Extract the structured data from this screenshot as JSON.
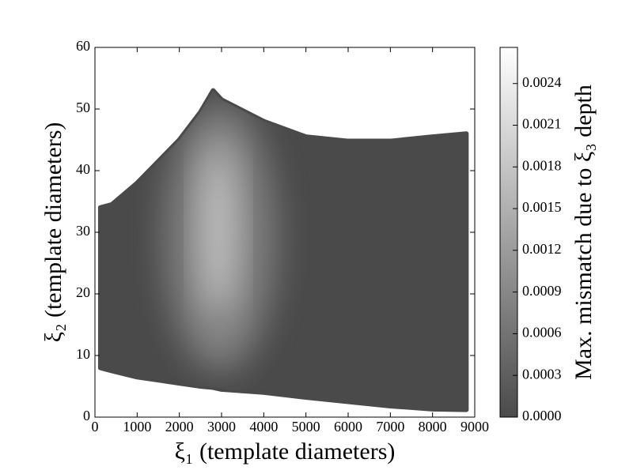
{
  "chart_data": {
    "type": "area",
    "xlabel": "ξ₁ (template diameters)",
    "ylabel": "ξ₂ (template diameters)",
    "colorbar_label": "Max. mismatch due to ξ₃ depth",
    "x": [
      130,
      400,
      1000,
      1500,
      2000,
      2500,
      2800,
      3000,
      4000,
      5000,
      6000,
      7000,
      8000,
      8800
    ],
    "upper": [
      34,
      34.5,
      38,
      41.5,
      45,
      49.5,
      53,
      51.5,
      48,
      45.5,
      44.8,
      44.8,
      45.5,
      46
    ],
    "lower": [
      8,
      7.5,
      6.5,
      6,
      5.5,
      5,
      4.8,
      4.5,
      4,
      3.2,
      2.5,
      1.8,
      1.3,
      1.2
    ],
    "color": "#4a4a4a",
    "cmap": [
      "#4a4a4a",
      "#ffffff"
    ],
    "xlim": [
      0,
      9000
    ],
    "xticks": [
      0,
      1000,
      2000,
      3000,
      4000,
      5000,
      6000,
      7000,
      8000,
      9000
    ],
    "ylim": [
      0,
      60
    ],
    "yticks": [
      0,
      10,
      20,
      30,
      40,
      50,
      60
    ],
    "clim": [
      0,
      0.00266
    ],
    "cticks": [
      {
        "value": 0,
        "label": "0.0000"
      },
      {
        "value": 0.0003,
        "label": "0.0003"
      },
      {
        "value": 0.0006,
        "label": "0.0006"
      },
      {
        "value": 0.0009,
        "label": "0.0009"
      },
      {
        "value": 0.0012,
        "label": "0.0012"
      },
      {
        "value": 0.0015,
        "label": "0.0015"
      },
      {
        "value": 0.0018,
        "label": "0.0018"
      },
      {
        "value": 0.0021,
        "label": "0.0021"
      },
      {
        "value": 0.0024,
        "label": "0.0024"
      }
    ]
  }
}
